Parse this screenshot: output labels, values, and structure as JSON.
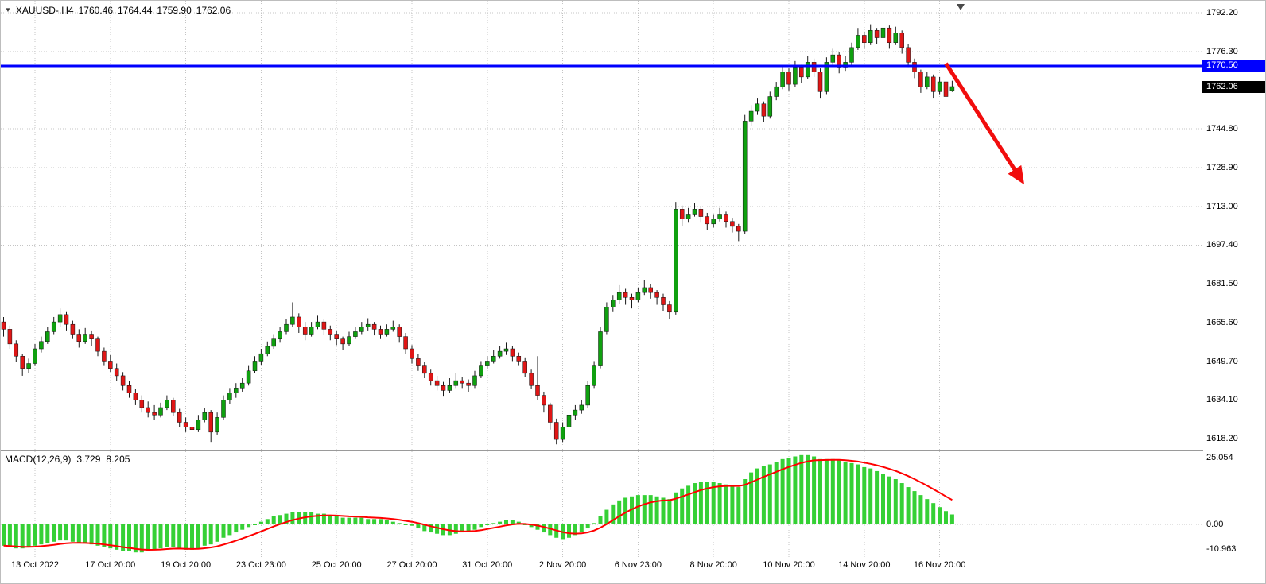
{
  "header": {
    "symbol": "XAUUSD-,H4",
    "open": "1760.46",
    "high": "1764.44",
    "low": "1759.90",
    "close": "1762.06"
  },
  "icons": {
    "symbol_dropdown": "▼",
    "object_marker": "▼"
  },
  "price_axis": {
    "labels": [
      "1792.20",
      "1776.30",
      "1744.80",
      "1728.90",
      "1713.00",
      "1697.40",
      "1681.50",
      "1665.60",
      "1649.70",
      "1634.10",
      "1618.20"
    ],
    "hline_tag": "1770.50",
    "price_tag": "1762.06"
  },
  "time_axis": {
    "labels": [
      "13 Oct 2022",
      "17 Oct 20:00",
      "19 Oct 20:00",
      "23 Oct 23:00",
      "25 Oct 20:00",
      "27 Oct 20:00",
      "31 Oct 20:00",
      "2 Nov 20:00",
      "6 Nov 23:00",
      "8 Nov 20:00",
      "10 Nov 20:00",
      "14 Nov 20:00",
      "16 Nov 20:00"
    ]
  },
  "macd_panel": {
    "label": "MACD(12,26,9)",
    "main_value": "3.729",
    "signal_value": "8.205",
    "axis_labels": [
      "25.054",
      "0.00",
      "-10.963"
    ]
  },
  "colors": {
    "bull": "#0fa00f",
    "bear": "#e01616",
    "wick": "#1a1a1a",
    "macd_hist": "#35d035",
    "signal": "#ff0000",
    "hline": "#0000fe",
    "arrow": "#f10d0d",
    "grid": "#c4c4c4",
    "separator": "#9a9a9a",
    "marker": "#4a4a4a"
  },
  "chart_data": {
    "type": "candlestick",
    "title": "XAUUSD-,H4",
    "timeframe": "H4",
    "x_labels": [
      "13 Oct 2022",
      "17 Oct 20:00",
      "19 Oct 20:00",
      "23 Oct 23:00",
      "25 Oct 20:00",
      "27 Oct 20:00",
      "31 Oct 20:00",
      "2 Nov 20:00",
      "6 Nov 23:00",
      "8 Nov 20:00",
      "10 Nov 20:00",
      "14 Nov 20:00",
      "16 Nov 20:00"
    ],
    "x_label_indices": [
      5,
      17,
      29,
      41,
      53,
      65,
      77,
      89,
      101,
      113,
      125,
      137,
      149
    ],
    "price_gridlines": [
      1792.2,
      1776.3,
      1744.8,
      1728.9,
      1713.0,
      1697.4,
      1681.5,
      1665.6,
      1649.7,
      1634.1,
      1618.2
    ],
    "hline": 1770.5,
    "last_close": 1762.06,
    "last_ohlc": {
      "open": 1760.46,
      "high": 1764.44,
      "low": 1759.9,
      "close": 1762.06
    },
    "arrow": {
      "from_index": 150,
      "from_price": 1771.5,
      "to_index": 162,
      "to_price": 1724
    },
    "candles": [
      [
        1666,
        1668,
        1660,
        1663
      ],
      [
        1663,
        1664.5,
        1655,
        1657
      ],
      [
        1657,
        1658.5,
        1649.5,
        1652
      ],
      [
        1652,
        1653,
        1644,
        1647
      ],
      [
        1647,
        1651,
        1645,
        1649
      ],
      [
        1649,
        1657,
        1648,
        1655
      ],
      [
        1655,
        1660,
        1653.5,
        1658
      ],
      [
        1658,
        1664,
        1657,
        1662
      ],
      [
        1662,
        1668,
        1661,
        1666
      ],
      [
        1666,
        1671.5,
        1664,
        1669
      ],
      [
        1669,
        1670,
        1662.5,
        1665
      ],
      [
        1665,
        1666.5,
        1659,
        1661
      ],
      [
        1661,
        1663,
        1655.5,
        1658
      ],
      [
        1658,
        1663.5,
        1657,
        1661
      ],
      [
        1661,
        1662.5,
        1656,
        1659
      ],
      [
        1659,
        1660,
        1652,
        1654
      ],
      [
        1654,
        1655.5,
        1648,
        1650
      ],
      [
        1650,
        1652.5,
        1645.5,
        1647
      ],
      [
        1647,
        1649,
        1642,
        1644
      ],
      [
        1644,
        1645.5,
        1638,
        1640
      ],
      [
        1640,
        1642,
        1635,
        1637
      ],
      [
        1637,
        1638.5,
        1632,
        1634
      ],
      [
        1634,
        1636,
        1629,
        1631
      ],
      [
        1631,
        1633.5,
        1627,
        1629
      ],
      [
        1629,
        1632,
        1626,
        1628
      ],
      [
        1628,
        1633,
        1627,
        1631
      ],
      [
        1631,
        1636,
        1630,
        1634
      ],
      [
        1634,
        1635,
        1627.5,
        1629
      ],
      [
        1629,
        1630.5,
        1623,
        1625
      ],
      [
        1625,
        1627,
        1621,
        1623
      ],
      [
        1623,
        1625.5,
        1619.5,
        1622
      ],
      [
        1622,
        1628,
        1621,
        1626
      ],
      [
        1626,
        1631,
        1625,
        1629
      ],
      [
        1629,
        1630,
        1617,
        1621
      ],
      [
        1621,
        1629,
        1620,
        1627
      ],
      [
        1627,
        1636,
        1626,
        1634
      ],
      [
        1634,
        1639,
        1632.5,
        1637
      ],
      [
        1637,
        1641,
        1635,
        1639
      ],
      [
        1639,
        1643,
        1637.5,
        1641
      ],
      [
        1641,
        1648,
        1640,
        1646
      ],
      [
        1646,
        1652,
        1645,
        1650
      ],
      [
        1650,
        1655,
        1648.5,
        1653
      ],
      [
        1653,
        1658,
        1652,
        1656
      ],
      [
        1656,
        1661,
        1655,
        1659
      ],
      [
        1659,
        1664,
        1657.5,
        1662
      ],
      [
        1662,
        1667,
        1661,
        1665
      ],
      [
        1665,
        1674,
        1664,
        1668
      ],
      [
        1668,
        1669.5,
        1661.5,
        1664
      ],
      [
        1664,
        1666,
        1658.5,
        1661
      ],
      [
        1661,
        1666,
        1660,
        1664
      ],
      [
        1664,
        1668.5,
        1663,
        1666
      ],
      [
        1666,
        1667,
        1660.5,
        1663
      ],
      [
        1663,
        1664.5,
        1658.5,
        1661
      ],
      [
        1661,
        1662.5,
        1656.5,
        1659
      ],
      [
        1659,
        1660,
        1654.5,
        1657
      ],
      [
        1657,
        1662,
        1656,
        1660
      ],
      [
        1660,
        1664,
        1659,
        1662
      ],
      [
        1662,
        1666,
        1661,
        1664
      ],
      [
        1664,
        1667.5,
        1662.5,
        1665
      ],
      [
        1665,
        1666,
        1660.5,
        1663
      ],
      [
        1663,
        1664.5,
        1659,
        1661
      ],
      [
        1661,
        1665,
        1660,
        1663
      ],
      [
        1663,
        1666.5,
        1662,
        1664
      ],
      [
        1664,
        1665,
        1657.5,
        1660
      ],
      [
        1660,
        1661.5,
        1653,
        1655
      ],
      [
        1655,
        1656.5,
        1649,
        1651
      ],
      [
        1651,
        1653,
        1646,
        1648
      ],
      [
        1648,
        1649.5,
        1643,
        1645
      ],
      [
        1645,
        1646.5,
        1640,
        1642
      ],
      [
        1642,
        1644,
        1638,
        1640
      ],
      [
        1640,
        1641.5,
        1635.5,
        1638
      ],
      [
        1638,
        1643,
        1637,
        1640
      ],
      [
        1640,
        1645,
        1639,
        1642
      ],
      [
        1642,
        1643.5,
        1639,
        1641
      ],
      [
        1641,
        1642.5,
        1637.5,
        1640
      ],
      [
        1640,
        1646,
        1639,
        1644
      ],
      [
        1644,
        1650,
        1643,
        1648
      ],
      [
        1648,
        1652,
        1647,
        1650
      ],
      [
        1650,
        1654.5,
        1649,
        1652
      ],
      [
        1652,
        1656,
        1651,
        1654
      ],
      [
        1654,
        1657.5,
        1652.5,
        1655
      ],
      [
        1655,
        1656,
        1650,
        1652
      ],
      [
        1652,
        1653.5,
        1648,
        1650
      ],
      [
        1650,
        1651.5,
        1643.5,
        1645
      ],
      [
        1645,
        1646.5,
        1638.5,
        1640
      ],
      [
        1640,
        1652,
        1634,
        1636
      ],
      [
        1636,
        1637.5,
        1629,
        1632
      ],
      [
        1632,
        1633,
        1622,
        1625
      ],
      [
        1625,
        1626.5,
        1616,
        1618
      ],
      [
        1618,
        1625,
        1617,
        1623
      ],
      [
        1623,
        1630,
        1622,
        1628
      ],
      [
        1628,
        1632,
        1626,
        1630
      ],
      [
        1630,
        1634,
        1628.5,
        1632
      ],
      [
        1632,
        1642,
        1631,
        1640
      ],
      [
        1640,
        1650,
        1639,
        1648
      ],
      [
        1648,
        1664,
        1647,
        1662
      ],
      [
        1662,
        1674,
        1661,
        1672
      ],
      [
        1672,
        1677,
        1670,
        1675
      ],
      [
        1675,
        1681,
        1673.5,
        1678
      ],
      [
        1678,
        1679.5,
        1673,
        1676
      ],
      [
        1676,
        1677.5,
        1671.5,
        1675
      ],
      [
        1675,
        1680,
        1674,
        1678
      ],
      [
        1678,
        1683,
        1677,
        1680
      ],
      [
        1680,
        1681.5,
        1675.5,
        1678
      ],
      [
        1678,
        1679,
        1673,
        1676
      ],
      [
        1676,
        1677.5,
        1670.5,
        1673
      ],
      [
        1673,
        1674.5,
        1667,
        1670
      ],
      [
        1670,
        1715,
        1669,
        1712
      ],
      [
        1712,
        1713.5,
        1705,
        1708
      ],
      [
        1708,
        1712.5,
        1706.5,
        1710
      ],
      [
        1710,
        1714.5,
        1709,
        1712
      ],
      [
        1712,
        1713,
        1706.5,
        1709
      ],
      [
        1709,
        1710.5,
        1703.5,
        1706
      ],
      [
        1706,
        1710,
        1704.5,
        1708
      ],
      [
        1708,
        1712.5,
        1707,
        1710
      ],
      [
        1710,
        1711,
        1704.5,
        1707
      ],
      [
        1707,
        1708.5,
        1702.5,
        1705
      ],
      [
        1705,
        1706,
        1699,
        1703
      ],
      [
        1703,
        1750.5,
        1702,
        1748
      ],
      [
        1748,
        1754.5,
        1746,
        1752
      ],
      [
        1752,
        1757.5,
        1750.5,
        1755
      ],
      [
        1755,
        1756,
        1747.5,
        1750
      ],
      [
        1750,
        1760,
        1749,
        1758
      ],
      [
        1758,
        1764,
        1756.5,
        1762
      ],
      [
        1762,
        1770,
        1761,
        1768
      ],
      [
        1768,
        1769.5,
        1760.5,
        1763
      ],
      [
        1763,
        1772.5,
        1762,
        1770
      ],
      [
        1770,
        1771,
        1763.5,
        1766
      ],
      [
        1766,
        1774.5,
        1765,
        1772
      ],
      [
        1772,
        1773.5,
        1766,
        1768
      ],
      [
        1768,
        1769.5,
        1757.5,
        1760
      ],
      [
        1760,
        1774,
        1759,
        1772
      ],
      [
        1772,
        1777.5,
        1771,
        1775
      ],
      [
        1775,
        1776,
        1767.5,
        1770
      ],
      [
        1770,
        1774.5,
        1768.5,
        1772
      ],
      [
        1772,
        1780,
        1771,
        1778
      ],
      [
        1778,
        1786,
        1777,
        1783
      ],
      [
        1783,
        1784.5,
        1777.5,
        1780
      ],
      [
        1780,
        1787.5,
        1779,
        1785
      ],
      [
        1785,
        1786,
        1779.5,
        1782
      ],
      [
        1782,
        1788.5,
        1781,
        1786
      ],
      [
        1786,
        1787,
        1777.5,
        1780
      ],
      [
        1780,
        1786.5,
        1779,
        1784
      ],
      [
        1784,
        1785,
        1775.5,
        1778
      ],
      [
        1778,
        1779.5,
        1770,
        1772
      ],
      [
        1772,
        1773.5,
        1765.5,
        1768
      ],
      [
        1768,
        1769,
        1759.5,
        1762
      ],
      [
        1762,
        1768,
        1761,
        1766
      ],
      [
        1766,
        1767,
        1757.5,
        1760
      ],
      [
        1760,
        1766,
        1759,
        1764
      ],
      [
        1764,
        1765,
        1755.5,
        1758
      ],
      [
        1760.46,
        1764.44,
        1759.9,
        1762.06
      ]
    ],
    "macd": {
      "params": [
        12,
        26,
        9
      ],
      "main_last": 3.729,
      "signal_last": 8.205,
      "axis_max": 25.054,
      "axis_min": -10.963,
      "histogram": [
        -8,
        -8.5,
        -9,
        -9,
        -8.5,
        -8,
        -7.5,
        -7,
        -6.5,
        -6,
        -6,
        -6.5,
        -7,
        -7,
        -7.5,
        -8,
        -8.5,
        -9,
        -9.5,
        -10,
        -10,
        -10.5,
        -10.5,
        -10,
        -9.5,
        -9,
        -8.5,
        -8.5,
        -9,
        -9.5,
        -9.5,
        -9,
        -8,
        -7.5,
        -6.5,
        -5,
        -4,
        -3,
        -2,
        -1,
        0,
        1,
        2,
        3,
        3.5,
        4,
        4.5,
        4.5,
        4.5,
        4.5,
        4,
        4,
        3.5,
        3,
        2.5,
        2.5,
        2.5,
        2.5,
        2,
        2,
        2,
        1.5,
        1,
        0.5,
        0,
        -0.5,
        -1.5,
        -2.5,
        -3,
        -3.5,
        -4,
        -4,
        -3.5,
        -3,
        -2.5,
        -2,
        -1,
        0,
        0.5,
        1,
        1.5,
        1.5,
        1,
        0,
        -1,
        -2,
        -3,
        -4,
        -5,
        -5.5,
        -5,
        -4,
        -3,
        -1.5,
        0.5,
        3,
        5.5,
        7.5,
        9,
        10,
        10.5,
        11,
        11,
        11,
        10.5,
        10,
        9.5,
        12,
        13.5,
        14.5,
        15.5,
        16,
        16,
        16,
        15.5,
        15,
        14.5,
        14,
        17,
        19.5,
        21,
        22,
        22.5,
        23.5,
        24.5,
        25,
        25.5,
        26,
        26,
        25.5,
        24.5,
        24.5,
        24.5,
        24,
        23.5,
        23,
        22.5,
        21.5,
        21,
        20,
        19,
        18,
        17,
        15.5,
        14,
        12.5,
        11,
        9.5,
        8,
        6.5,
        5,
        3.729
      ]
    }
  }
}
